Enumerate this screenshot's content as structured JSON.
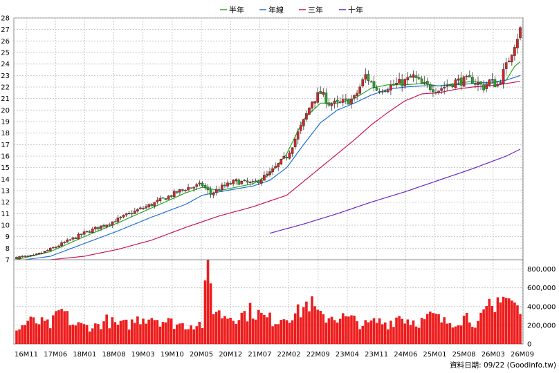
{
  "chart_data": [
    {
      "type": "candlestick",
      "legend": [
        {
          "name": "半年",
          "color": "#22aa22"
        },
        {
          "name": "年線",
          "color": "#1f6fd6"
        },
        {
          "name": "三年",
          "color": "#cc1155"
        },
        {
          "name": "十年",
          "color": "#6a22cc"
        }
      ],
      "ylim": [
        7,
        28
      ],
      "y_ticks": [
        7,
        8,
        9,
        10,
        11,
        12,
        13,
        14,
        15,
        16,
        17,
        18,
        19,
        20,
        21,
        22,
        23,
        24,
        25,
        26,
        27,
        28
      ],
      "x_ticks": [
        "16M11",
        "17M06",
        "18M01",
        "18M08",
        "19M03",
        "19M10",
        "20M05",
        "20M12",
        "21M07",
        "22M02",
        "22M09",
        "23M04",
        "23M11",
        "24M06",
        "25M01",
        "25M08",
        "26M03",
        "26M09"
      ],
      "grid": true,
      "up_color": "#dd2222",
      "down_color": "#22aa22",
      "close_anchors": [
        [
          0,
          7.2
        ],
        [
          6,
          7.3
        ],
        [
          12,
          7.9
        ],
        [
          18,
          8.6
        ],
        [
          24,
          9.3
        ],
        [
          30,
          9.9
        ],
        [
          36,
          10.5
        ],
        [
          42,
          11.2
        ],
        [
          48,
          11.8
        ],
        [
          54,
          12.5
        ],
        [
          60,
          13.2
        ],
        [
          66,
          13.5
        ],
        [
          69,
          12.7
        ],
        [
          72,
          13.2
        ],
        [
          78,
          13.8
        ],
        [
          84,
          13.6
        ],
        [
          90,
          14.5
        ],
        [
          96,
          16.0
        ],
        [
          102,
          19.0
        ],
        [
          105,
          20.8
        ],
        [
          108,
          21.5
        ],
        [
          111,
          20.6
        ],
        [
          114,
          20.5
        ],
        [
          120,
          21.0
        ],
        [
          124,
          23.0
        ],
        [
          128,
          21.8
        ],
        [
          132,
          22.0
        ],
        [
          138,
          22.5
        ],
        [
          141,
          22.9
        ],
        [
          144,
          22.2
        ],
        [
          150,
          21.8
        ],
        [
          156,
          22.5
        ],
        [
          162,
          22.6
        ],
        [
          166,
          22.0
        ],
        [
          168,
          22.5
        ],
        [
          171,
          22.2
        ],
        [
          174,
          23.8
        ],
        [
          177,
          25.8
        ],
        [
          179,
          27.0
        ]
      ],
      "series": [
        {
          "name": "半年",
          "start_index": 0,
          "points": [
            [
              0,
              7.0
            ],
            [
              12,
              7.7
            ],
            [
              24,
              9.0
            ],
            [
              36,
              10.2
            ],
            [
              48,
              11.5
            ],
            [
              60,
              12.8
            ],
            [
              66,
              13.3
            ],
            [
              72,
              13.0
            ],
            [
              84,
              13.6
            ],
            [
              90,
              14.4
            ],
            [
              96,
              16.2
            ],
            [
              102,
              19.2
            ],
            [
              108,
              20.6
            ],
            [
              114,
              20.6
            ],
            [
              120,
              21.0
            ],
            [
              126,
              21.9
            ],
            [
              132,
              22.2
            ],
            [
              138,
              22.2
            ],
            [
              144,
              22.3
            ],
            [
              150,
              22.1
            ],
            [
              156,
              22.3
            ],
            [
              162,
              22.5
            ],
            [
              168,
              22.3
            ],
            [
              174,
              22.6
            ],
            [
              177,
              23.8
            ],
            [
              179,
              24.2
            ]
          ]
        },
        {
          "name": "年線",
          "start_index": 0,
          "points": [
            [
              0,
              6.9
            ],
            [
              12,
              7.3
            ],
            [
              24,
              8.4
            ],
            [
              36,
              9.5
            ],
            [
              48,
              10.7
            ],
            [
              60,
              11.8
            ],
            [
              66,
              12.6
            ],
            [
              72,
              12.9
            ],
            [
              84,
              13.4
            ],
            [
              90,
              13.9
            ],
            [
              96,
              15.0
            ],
            [
              102,
              17.0
            ],
            [
              108,
              18.9
            ],
            [
              114,
              20.0
            ],
            [
              120,
              20.6
            ],
            [
              126,
              21.3
            ],
            [
              132,
              21.8
            ],
            [
              138,
              22.0
            ],
            [
              144,
              22.1
            ],
            [
              150,
              22.1
            ],
            [
              156,
              22.2
            ],
            [
              162,
              22.3
            ],
            [
              168,
              22.4
            ],
            [
              174,
              22.6
            ],
            [
              179,
              23.0
            ]
          ]
        },
        {
          "name": "三年",
          "start_index": 0,
          "points": [
            [
              0,
              6.9
            ],
            [
              12,
              7.0
            ],
            [
              24,
              7.3
            ],
            [
              36,
              7.9
            ],
            [
              48,
              8.7
            ],
            [
              60,
              9.8
            ],
            [
              72,
              10.8
            ],
            [
              84,
              11.6
            ],
            [
              96,
              12.6
            ],
            [
              102,
              13.8
            ],
            [
              108,
              15.0
            ],
            [
              114,
              16.2
            ],
            [
              120,
              17.4
            ],
            [
              126,
              18.7
            ],
            [
              132,
              19.8
            ],
            [
              138,
              20.8
            ],
            [
              144,
              21.4
            ],
            [
              150,
              21.5
            ],
            [
              156,
              21.8
            ],
            [
              162,
              22.0
            ],
            [
              168,
              22.1
            ],
            [
              174,
              22.3
            ],
            [
              179,
              22.5
            ]
          ]
        },
        {
          "name": "十年",
          "start_index": 90,
          "points": [
            [
              90,
              9.3
            ],
            [
              102,
              10.1
            ],
            [
              114,
              11.0
            ],
            [
              126,
              12.0
            ],
            [
              138,
              12.9
            ],
            [
              150,
              13.9
            ],
            [
              162,
              14.9
            ],
            [
              174,
              16.0
            ],
            [
              179,
              16.6
            ]
          ]
        }
      ]
    },
    {
      "type": "bar",
      "ylim": [
        0,
        900000
      ],
      "y_ticks": [
        0,
        200000,
        400000,
        600000,
        800000
      ],
      "y_tick_labels": [
        "0",
        "200,000",
        "400,000",
        "600,000",
        "800,000"
      ],
      "color": "#ee1c1c",
      "grid": true,
      "volume_anchors": [
        [
          0,
          140000
        ],
        [
          4,
          240000
        ],
        [
          8,
          230000
        ],
        [
          12,
          200000
        ],
        [
          16,
          360000
        ],
        [
          20,
          210000
        ],
        [
          24,
          190000
        ],
        [
          28,
          190000
        ],
        [
          32,
          250000
        ],
        [
          36,
          200000
        ],
        [
          40,
          210000
        ],
        [
          44,
          280000
        ],
        [
          48,
          300000
        ],
        [
          52,
          250000
        ],
        [
          56,
          220000
        ],
        [
          60,
          200000
        ],
        [
          64,
          220000
        ],
        [
          66,
          210000
        ],
        [
          68,
          850000
        ],
        [
          70,
          400000
        ],
        [
          72,
          320000
        ],
        [
          76,
          300000
        ],
        [
          80,
          310000
        ],
        [
          84,
          360000
        ],
        [
          88,
          280000
        ],
        [
          92,
          250000
        ],
        [
          96,
          310000
        ],
        [
          100,
          330000
        ],
        [
          104,
          450000
        ],
        [
          108,
          280000
        ],
        [
          112,
          300000
        ],
        [
          116,
          280000
        ],
        [
          120,
          250000
        ],
        [
          124,
          200000
        ],
        [
          128,
          240000
        ],
        [
          132,
          220000
        ],
        [
          136,
          300000
        ],
        [
          140,
          250000
        ],
        [
          144,
          240000
        ],
        [
          148,
          300000
        ],
        [
          152,
          230000
        ],
        [
          156,
          250000
        ],
        [
          160,
          300000
        ],
        [
          164,
          220000
        ],
        [
          168,
          380000
        ],
        [
          170,
          330000
        ],
        [
          172,
          600000
        ],
        [
          174,
          500000
        ],
        [
          176,
          460000
        ],
        [
          178,
          380000
        ],
        [
          179,
          320000
        ]
      ]
    }
  ],
  "footer": {
    "text": "資料日期: 09/22  (Goodinfo.tw)"
  }
}
